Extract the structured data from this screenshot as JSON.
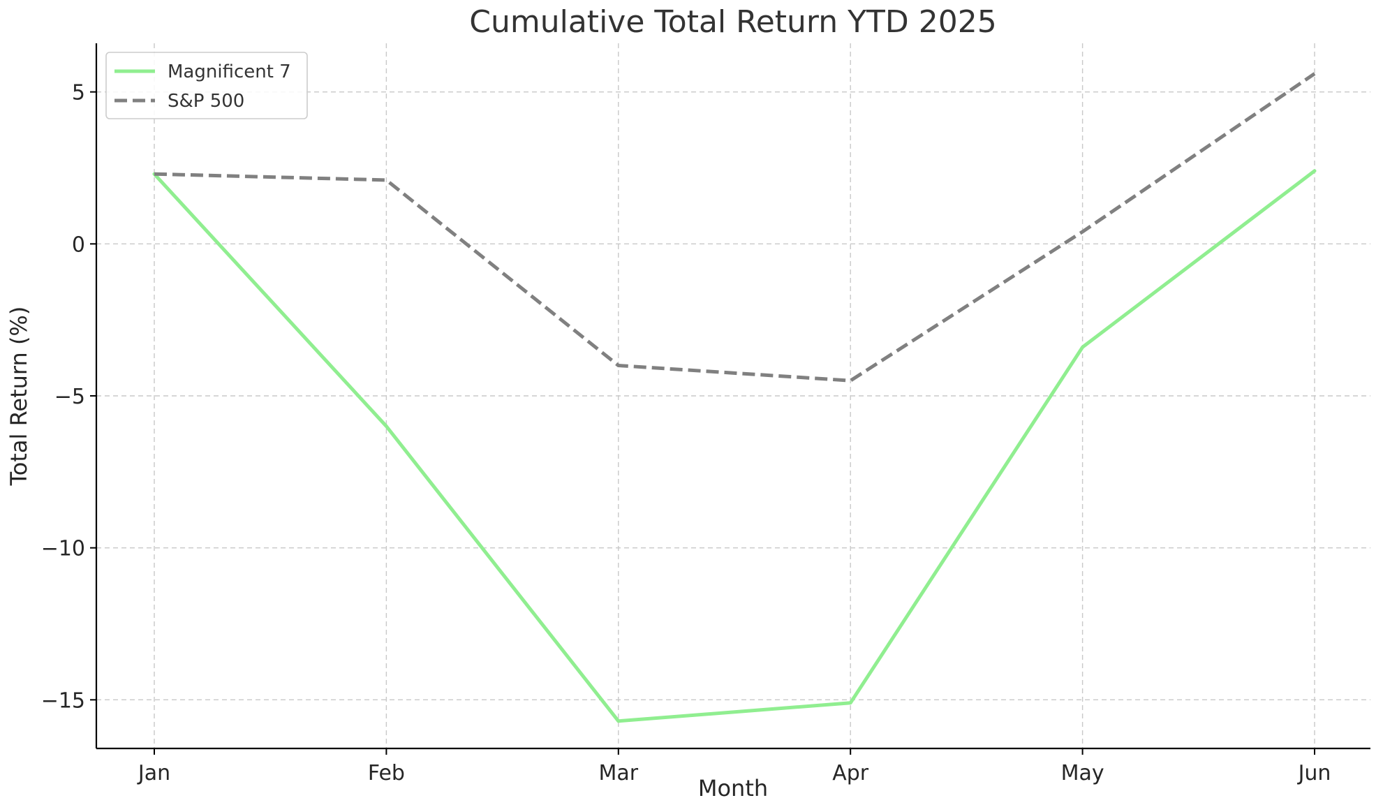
{
  "chart_data": {
    "type": "line",
    "title": "Cumulative Total Return YTD 2025",
    "xlabel": "Month",
    "ylabel": "Total Return (%)",
    "categories": [
      "Jan",
      "Feb",
      "Mar",
      "Apr",
      "May",
      "Jun"
    ],
    "ylim": [
      -16.6,
      6.6
    ],
    "yticks": [
      5,
      0,
      -5,
      -10,
      -15
    ],
    "ytick_labels": [
      "5",
      "0",
      "−5",
      "−10",
      "−15"
    ],
    "grid": true,
    "legend_position": "top-left",
    "series": [
      {
        "name": "Magnificent 7",
        "values": [
          2.3,
          -6.0,
          -15.7,
          -15.1,
          -3.4,
          2.4
        ],
        "color": "#90ee90",
        "line_style": "solid"
      },
      {
        "name": "S&P 500",
        "values": [
          2.3,
          2.1,
          -4.0,
          -4.5,
          0.4,
          5.6
        ],
        "color": "#808080",
        "line_style": "dashed"
      }
    ]
  }
}
